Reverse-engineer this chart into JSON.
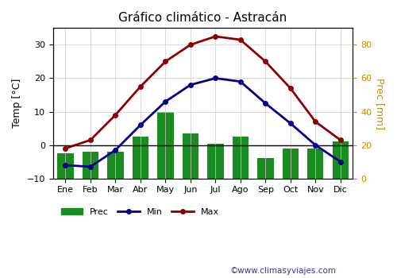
{
  "title": "Gráfico climático - Astracán",
  "months": [
    "Ene",
    "Feb",
    "Mar",
    "Abr",
    "May",
    "Jun",
    "Jul",
    "Ago",
    "Sep",
    "Oct",
    "Nov",
    "Dic"
  ],
  "temp_max": [
    -1,
    1.5,
    9,
    17.5,
    25,
    30,
    32.5,
    31.5,
    25,
    17,
    7,
    1.5
  ],
  "temp_min_vals": [
    -6,
    -6.5,
    -1.5,
    6,
    13,
    18,
    20,
    19,
    12.5,
    6.5,
    0,
    -5
  ],
  "prec": [
    15,
    16,
    16,
    25,
    40,
    27,
    21,
    25,
    12,
    18,
    18,
    22
  ],
  "prec_bar_color": "#1a8c22",
  "line_max_color": "#8b0000",
  "line_min_color": "#00008b",
  "background_color": "#ffffff",
  "grid_color": "#cccccc",
  "ylabel_left": "Temp [°C]",
  "ylabel_right": "Prec [mm]",
  "ylim_left": [
    -10,
    35
  ],
  "ylim_right": [
    0,
    90
  ],
  "right_tick_color": "#cc8800",
  "watermark": "©www.climasyviajes.com",
  "legend_prec": "Prec",
  "legend_min": "Min",
  "legend_max": "Max",
  "figsize": [
    5.0,
    3.5
  ],
  "dpi": 100
}
